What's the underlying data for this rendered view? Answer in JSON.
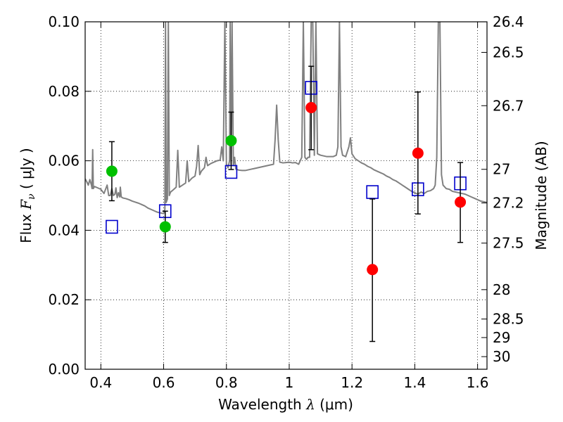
{
  "chart_data": {
    "type": "scatter",
    "xlabel": {
      "prefix": "Wavelength  ",
      "symbol": "λ",
      "suffix": " (μm)"
    },
    "ylabel": {
      "prefix": "Flux  ",
      "symbol": "F",
      "subscript": "ν",
      "suffix": "  ( μJy )"
    },
    "ylabel_right": "Magnitude (AB)",
    "xlim": [
      0.35,
      1.63
    ],
    "ylim": [
      0.0,
      0.1
    ],
    "grid": true,
    "x_ticks": [
      0.4,
      0.6,
      0.8,
      1.0,
      1.2,
      1.4,
      1.6
    ],
    "x_tick_labels": [
      "0.4",
      "0.6",
      "0.8",
      "1",
      "1.2",
      "1.4",
      "1.6"
    ],
    "y_ticks": [
      0.0,
      0.02,
      0.04,
      0.06,
      0.08,
      0.1
    ],
    "y_tick_labels": [
      "0.00",
      "0.02",
      "0.04",
      "0.06",
      "0.08",
      "0.10"
    ],
    "mag_ticks": [
      {
        "label": "26.4",
        "value": 26.4
      },
      {
        "label": "26.5",
        "value": 26.5
      },
      {
        "label": "26.7",
        "value": 26.7
      },
      {
        "label": "27",
        "value": 27.0
      },
      {
        "label": "27.2",
        "value": 27.2
      },
      {
        "label": "27.5",
        "value": 27.5
      },
      {
        "label": "28",
        "value": 28.0
      },
      {
        "label": "28.5",
        "value": 28.5
      },
      {
        "label": "29",
        "value": 29.0
      },
      {
        "label": "30",
        "value": 30.0
      }
    ],
    "series": [
      {
        "kind": "model-spectrum",
        "color": "#808080",
        "points": [
          [
            0.35,
            0.0548
          ],
          [
            0.355,
            0.054
          ],
          [
            0.36,
            0.053
          ],
          [
            0.365,
            0.0546
          ],
          [
            0.37,
            0.053
          ],
          [
            0.372,
            0.052
          ],
          [
            0.374,
            0.0632
          ],
          [
            0.376,
            0.052
          ],
          [
            0.38,
            0.0526
          ],
          [
            0.39,
            0.0522
          ],
          [
            0.4,
            0.0518
          ],
          [
            0.41,
            0.0506
          ],
          [
            0.42,
            0.053
          ],
          [
            0.425,
            0.05
          ],
          [
            0.43,
            0.05
          ],
          [
            0.435,
            0.052
          ],
          [
            0.44,
            0.05
          ],
          [
            0.445,
            0.0504
          ],
          [
            0.448,
            0.0522
          ],
          [
            0.452,
            0.0494
          ],
          [
            0.456,
            0.0508
          ],
          [
            0.46,
            0.0496
          ],
          [
            0.462,
            0.0524
          ],
          [
            0.465,
            0.0496
          ],
          [
            0.47,
            0.0493
          ],
          [
            0.48,
            0.0491
          ],
          [
            0.49,
            0.0488
          ],
          [
            0.5,
            0.0484
          ],
          [
            0.51,
            0.0481
          ],
          [
            0.52,
            0.0478
          ],
          [
            0.53,
            0.0474
          ],
          [
            0.54,
            0.047
          ],
          [
            0.55,
            0.0464
          ],
          [
            0.56,
            0.046
          ],
          [
            0.57,
            0.0456
          ],
          [
            0.58,
            0.0452
          ],
          [
            0.59,
            0.045
          ],
          [
            0.6,
            0.0448
          ],
          [
            0.604,
            0.046
          ],
          [
            0.606,
            0.1
          ],
          [
            0.608,
            0.048
          ],
          [
            0.612,
            0.049
          ],
          [
            0.615,
            0.1
          ],
          [
            0.618,
            0.05
          ],
          [
            0.622,
            0.051
          ],
          [
            0.63,
            0.0516
          ],
          [
            0.64,
            0.0524
          ],
          [
            0.645,
            0.063
          ],
          [
            0.65,
            0.0524
          ],
          [
            0.66,
            0.053
          ],
          [
            0.67,
            0.0536
          ],
          [
            0.675,
            0.06
          ],
          [
            0.68,
            0.054
          ],
          [
            0.69,
            0.055
          ],
          [
            0.7,
            0.0556
          ],
          [
            0.705,
            0.0584
          ],
          [
            0.71,
            0.0644
          ],
          [
            0.715,
            0.056
          ],
          [
            0.72,
            0.057
          ],
          [
            0.73,
            0.058
          ],
          [
            0.735,
            0.061
          ],
          [
            0.74,
            0.0586
          ],
          [
            0.75,
            0.0592
          ],
          [
            0.76,
            0.0596
          ],
          [
            0.77,
            0.06
          ],
          [
            0.78,
            0.0602
          ],
          [
            0.785,
            0.064
          ],
          [
            0.79,
            0.06
          ],
          [
            0.795,
            0.1
          ],
          [
            0.8,
            0.059
          ],
          [
            0.805,
            0.058
          ],
          [
            0.81,
            0.06
          ],
          [
            0.812,
            0.1
          ],
          [
            0.815,
            0.059
          ],
          [
            0.818,
            0.1
          ],
          [
            0.822,
            0.0586
          ],
          [
            0.826,
            0.061
          ],
          [
            0.83,
            0.0576
          ],
          [
            0.84,
            0.0573
          ],
          [
            0.85,
            0.0572
          ],
          [
            0.86,
            0.0572
          ],
          [
            0.87,
            0.0574
          ],
          [
            0.88,
            0.0576
          ],
          [
            0.89,
            0.0578
          ],
          [
            0.9,
            0.058
          ],
          [
            0.91,
            0.0582
          ],
          [
            0.92,
            0.0584
          ],
          [
            0.93,
            0.0586
          ],
          [
            0.94,
            0.0588
          ],
          [
            0.95,
            0.059
          ],
          [
            0.955,
            0.066
          ],
          [
            0.96,
            0.076
          ],
          [
            0.965,
            0.066
          ],
          [
            0.97,
            0.0596
          ],
          [
            0.98,
            0.0594
          ],
          [
            0.99,
            0.0595
          ],
          [
            1.0,
            0.0596
          ],
          [
            1.01,
            0.0594
          ],
          [
            1.02,
            0.0595
          ],
          [
            1.03,
            0.059
          ],
          [
            1.035,
            0.06
          ],
          [
            1.04,
            0.061
          ],
          [
            1.045,
            0.1
          ],
          [
            1.05,
            0.061
          ],
          [
            1.055,
            0.0604
          ],
          [
            1.06,
            0.061
          ],
          [
            1.065,
            0.061
          ],
          [
            1.07,
            0.1
          ],
          [
            1.075,
            0.1
          ],
          [
            1.08,
            0.0616
          ],
          [
            1.085,
            0.1
          ],
          [
            1.09,
            0.062
          ],
          [
            1.1,
            0.0616
          ],
          [
            1.11,
            0.0614
          ],
          [
            1.12,
            0.0612
          ],
          [
            1.13,
            0.0612
          ],
          [
            1.14,
            0.0612
          ],
          [
            1.15,
            0.0616
          ],
          [
            1.155,
            0.064
          ],
          [
            1.16,
            0.1
          ],
          [
            1.165,
            0.064
          ],
          [
            1.17,
            0.0616
          ],
          [
            1.18,
            0.0612
          ],
          [
            1.19,
            0.064
          ],
          [
            1.195,
            0.0666
          ],
          [
            1.2,
            0.062
          ],
          [
            1.21,
            0.0606
          ],
          [
            1.22,
            0.06
          ],
          [
            1.23,
            0.0594
          ],
          [
            1.24,
            0.059
          ],
          [
            1.25,
            0.0584
          ],
          [
            1.26,
            0.058
          ],
          [
            1.27,
            0.0574
          ],
          [
            1.28,
            0.057
          ],
          [
            1.29,
            0.0566
          ],
          [
            1.3,
            0.0562
          ],
          [
            1.31,
            0.0556
          ],
          [
            1.32,
            0.0552
          ],
          [
            1.33,
            0.0546
          ],
          [
            1.34,
            0.0542
          ],
          [
            1.35,
            0.0536
          ],
          [
            1.36,
            0.053
          ],
          [
            1.37,
            0.0524
          ],
          [
            1.38,
            0.0518
          ],
          [
            1.39,
            0.0512
          ],
          [
            1.4,
            0.0508
          ],
          [
            1.41,
            0.0504
          ],
          [
            1.42,
            0.051
          ],
          [
            1.43,
            0.0506
          ],
          [
            1.44,
            0.0512
          ],
          [
            1.45,
            0.0514
          ],
          [
            1.46,
            0.052
          ],
          [
            1.465,
            0.053
          ],
          [
            1.47,
            0.061
          ],
          [
            1.475,
            0.1
          ],
          [
            1.48,
            0.1
          ],
          [
            1.485,
            0.056
          ],
          [
            1.49,
            0.053
          ],
          [
            1.5,
            0.052
          ],
          [
            1.51,
            0.0518
          ],
          [
            1.52,
            0.0512
          ],
          [
            1.53,
            0.051
          ],
          [
            1.54,
            0.0508
          ],
          [
            1.55,
            0.0506
          ],
          [
            1.56,
            0.0504
          ],
          [
            1.57,
            0.05
          ],
          [
            1.58,
            0.0496
          ],
          [
            1.59,
            0.0492
          ],
          [
            1.6,
            0.0488
          ],
          [
            1.61,
            0.0484
          ],
          [
            1.62,
            0.0482
          ],
          [
            1.63,
            0.048
          ]
        ]
      },
      {
        "kind": "model-photometry",
        "marker": "open-square",
        "color": "#0000cc",
        "points": [
          [
            0.435,
            0.041
          ],
          [
            0.605,
            0.0455
          ],
          [
            0.815,
            0.0568
          ],
          [
            1.07,
            0.081
          ],
          [
            1.265,
            0.051
          ],
          [
            1.41,
            0.0518
          ],
          [
            1.545,
            0.0535
          ]
        ]
      },
      {
        "kind": "observed-photometry",
        "marker": "filled-circle",
        "color": "#00c000",
        "points": [
          {
            "x": 0.435,
            "y": 0.057,
            "err_lo": 0.0485,
            "err_hi": 0.0655
          },
          {
            "x": 0.605,
            "y": 0.041,
            "err_lo": 0.0365,
            "err_hi": 0.0455
          },
          {
            "x": 0.815,
            "y": 0.0658,
            "err_lo": 0.0575,
            "err_hi": 0.074
          }
        ]
      },
      {
        "kind": "observed-photometry",
        "marker": "filled-circle",
        "color": "#ff0000",
        "points": [
          {
            "x": 1.07,
            "y": 0.0753,
            "err_lo": 0.0632,
            "err_hi": 0.0872
          },
          {
            "x": 1.265,
            "y": 0.0287,
            "err_lo": 0.008,
            "err_hi": 0.049
          },
          {
            "x": 1.41,
            "y": 0.0622,
            "err_lo": 0.0447,
            "err_hi": 0.0798
          },
          {
            "x": 1.545,
            "y": 0.0481,
            "err_lo": 0.0365,
            "err_hi": 0.0595
          }
        ]
      }
    ]
  }
}
